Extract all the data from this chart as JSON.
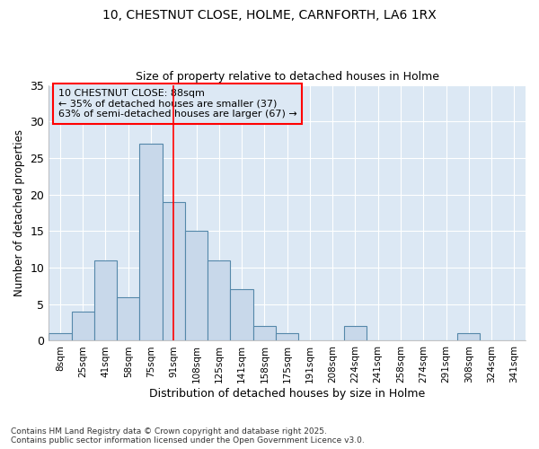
{
  "title_line1": "10, CHESTNUT CLOSE, HOLME, CARNFORTH, LA6 1RX",
  "title_line2": "Size of property relative to detached houses in Holme",
  "xlabel": "Distribution of detached houses by size in Holme",
  "ylabel": "Number of detached properties",
  "bar_labels": [
    "8sqm",
    "25sqm",
    "41sqm",
    "58sqm",
    "75sqm",
    "91sqm",
    "108sqm",
    "125sqm",
    "141sqm",
    "158sqm",
    "175sqm",
    "191sqm",
    "208sqm",
    "224sqm",
    "241sqm",
    "258sqm",
    "274sqm",
    "291sqm",
    "308sqm",
    "324sqm",
    "341sqm"
  ],
  "bar_values": [
    1,
    4,
    11,
    6,
    27,
    19,
    15,
    11,
    7,
    2,
    1,
    0,
    0,
    2,
    0,
    0,
    0,
    0,
    1,
    0,
    0
  ],
  "bar_color": "#c8d8ea",
  "bar_edgecolor": "#5588aa",
  "plot_bg_color": "#dce8f4",
  "fig_bg_color": "#ffffff",
  "grid_color": "#ffffff",
  "annotation_line1": "10 CHESTNUT CLOSE: 88sqm",
  "annotation_line2": "← 35% of detached houses are smaller (37)",
  "annotation_line3": "63% of semi-detached houses are larger (67) →",
  "red_line_index": 5,
  "ylim": [
    0,
    35
  ],
  "yticks": [
    0,
    5,
    10,
    15,
    20,
    25,
    30,
    35
  ],
  "footnote1": "Contains HM Land Registry data © Crown copyright and database right 2025.",
  "footnote2": "Contains public sector information licensed under the Open Government Licence v3.0."
}
